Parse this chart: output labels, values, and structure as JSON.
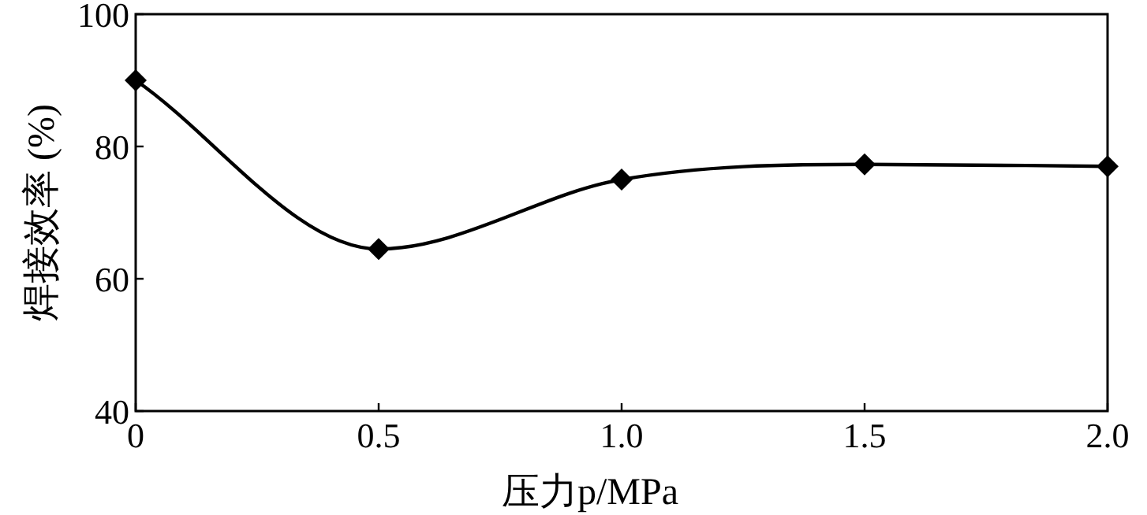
{
  "chart_data": {
    "type": "line",
    "xlabel": "压力p/MPa",
    "ylabel": "焊接效率 (%)",
    "x": [
      0,
      0.5,
      1.0,
      1.5,
      2.0
    ],
    "series": [
      {
        "color": "#000000",
        "values": [
          90,
          64.5,
          75,
          77.3,
          77
        ]
      }
    ],
    "xlim": [
      0,
      2.0
    ],
    "xticks": [
      0,
      0.5,
      {
        "value": 1.0,
        "label": "1.0"
      },
      1.5,
      {
        "value": 2.0,
        "label": "2.0"
      }
    ],
    "ylim": [
      40,
      100
    ],
    "yticks": [
      40,
      60,
      80,
      100
    ],
    "marker": "diamond",
    "line_style": "solid",
    "grid": false
  }
}
